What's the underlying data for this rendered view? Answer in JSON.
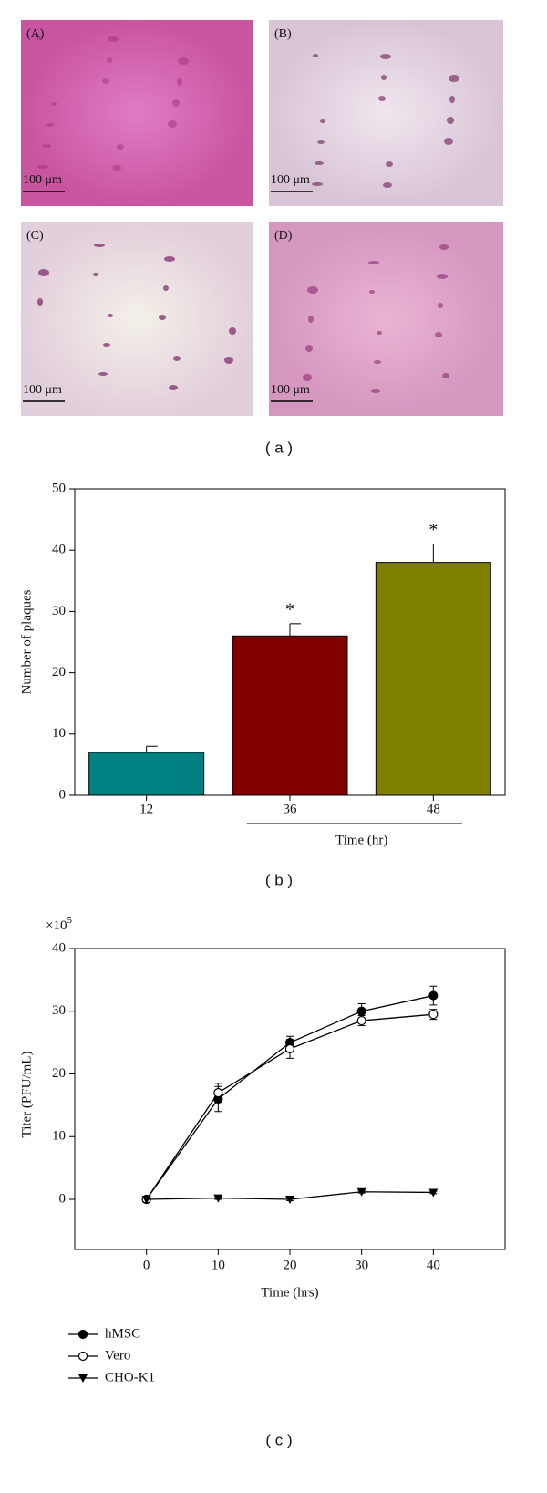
{
  "figure_a": {
    "images": [
      {
        "label": "(A)",
        "scale": "100 μm"
      },
      {
        "label": "(B)",
        "scale": "100 μm"
      },
      {
        "label": "(C)",
        "scale": "100 μm"
      },
      {
        "label": "(D)",
        "scale": "100 μm"
      }
    ],
    "caption": "( a )"
  },
  "chart_data": [
    {
      "type": "bar",
      "caption": "( b )",
      "ylabel": "Number of plaques",
      "xlabel": "Time (hr)",
      "categories": [
        "12",
        "36",
        "48"
      ],
      "values": [
        7,
        26,
        38
      ],
      "errors": [
        1,
        2,
        3
      ],
      "colors": [
        "#008080",
        "#800000",
        "#808000"
      ],
      "annotations": [
        null,
        "*",
        "*"
      ],
      "ylim": [
        0,
        50
      ],
      "yticks": [
        0,
        10,
        20,
        30,
        40,
        50
      ]
    },
    {
      "type": "line",
      "caption": "( c )",
      "ylabel": "Titer (PFU/mL)",
      "xlabel": "Time (hrs)",
      "y_multiplier": {
        "base": "×10",
        "exponent": "5"
      },
      "x": [
        0,
        10,
        20,
        30,
        40
      ],
      "series": [
        {
          "name": "hMSC",
          "marker": "filled-circle",
          "color": "#000000",
          "values": [
            0,
            16,
            25,
            30,
            32.5
          ],
          "errors": [
            0.5,
            2,
            1,
            1.2,
            1.5
          ]
        },
        {
          "name": "Vero",
          "marker": "open-circle",
          "color": "#000000",
          "values": [
            0,
            17,
            24,
            28.5,
            29.5
          ],
          "errors": [
            0.5,
            1.5,
            1.5,
            0.8,
            0.8
          ]
        },
        {
          "name": "CHO-K1",
          "marker": "triangle-down",
          "color": "#000000",
          "values": [
            0,
            0.2,
            0,
            1.2,
            1.1
          ],
          "errors": [
            0.5,
            0.2,
            0.2,
            0.2,
            0.2
          ]
        }
      ],
      "xlim": [
        -10,
        50
      ],
      "xticks": [
        0,
        10,
        20,
        30,
        40
      ],
      "ylim": [
        -8,
        40
      ],
      "yticks": [
        0,
        10,
        20,
        30,
        40
      ]
    }
  ]
}
